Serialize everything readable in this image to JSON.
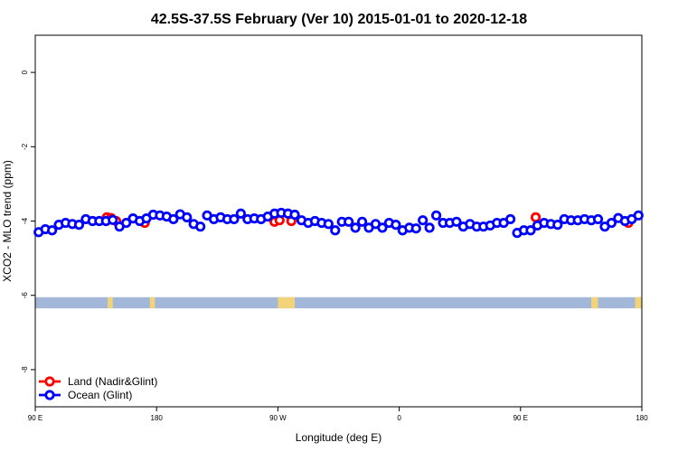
{
  "chart_data": {
    "type": "scatter",
    "title": "42.5S-37.5S February (Ver 10)   2015-01-01 to 2020-12-18",
    "xlabel": "Longitude (deg E)",
    "ylabel": "XCO2 - MLO trend (ppm)",
    "xlim": [
      90,
      450
    ],
    "ylim": [
      -9,
      1
    ],
    "x_ticks": [
      {
        "value": 90,
        "label": "90 E"
      },
      {
        "value": 162,
        "label": "180"
      },
      {
        "value": 234,
        "label": "90 W"
      },
      {
        "value": 306,
        "label": "0"
      },
      {
        "value": 378,
        "label": "90 E"
      },
      {
        "value": 450,
        "label": "180"
      }
    ],
    "y_ticks": [
      {
        "value": 0,
        "label": "0"
      },
      {
        "value": -2,
        "label": "-2"
      },
      {
        "value": -4,
        "label": "-4"
      },
      {
        "value": -6,
        "label": "-6"
      },
      {
        "value": -8,
        "label": "-8"
      }
    ],
    "legend": {
      "position": "bottom-left",
      "entries": [
        {
          "name": "Land (Nadir&Glint)",
          "color": "#ff0000"
        },
        {
          "name": "Ocean (Glint)",
          "color": "#0000ff"
        }
      ]
    },
    "series": [
      {
        "name": "Land (Nadir&Glint)",
        "color": "#ff0000",
        "x": [
          132.5,
          135,
          138,
          155,
          232,
          235,
          242,
          387,
          442
        ],
        "y": [
          -3.9,
          -3.92,
          -4.0,
          -4.05,
          -4.02,
          -3.98,
          -4.0,
          -3.9,
          -4.05
        ]
      },
      {
        "name": "Ocean (Glint)",
        "color": "#0000ff",
        "x": [
          92,
          96,
          100,
          104,
          108,
          112,
          116,
          120,
          124,
          128,
          132,
          136,
          140,
          144,
          148,
          152,
          156,
          160,
          164,
          168,
          172,
          176,
          180,
          184,
          188,
          192,
          196,
          200,
          204,
          208,
          212,
          216,
          220,
          224,
          228,
          232,
          236,
          240,
          244,
          248,
          252,
          256,
          260,
          264,
          268,
          272,
          276,
          280,
          284,
          288,
          292,
          296,
          300,
          304,
          308,
          312,
          316,
          320,
          324,
          328,
          332,
          336,
          340,
          344,
          348,
          352,
          356,
          360,
          364,
          368,
          372,
          376,
          380,
          384,
          388,
          392,
          396,
          400,
          404,
          408,
          412,
          416,
          420,
          424,
          428,
          432,
          436,
          440,
          444,
          448
        ],
        "y": [
          -4.3,
          -4.22,
          -4.25,
          -4.1,
          -4.05,
          -4.08,
          -4.1,
          -3.95,
          -4.0,
          -4.0,
          -4.0,
          -3.97,
          -4.15,
          -4.05,
          -3.93,
          -4.0,
          -3.93,
          -3.83,
          -3.85,
          -3.88,
          -3.95,
          -3.82,
          -3.9,
          -4.08,
          -4.15,
          -3.85,
          -3.95,
          -3.9,
          -3.95,
          -3.95,
          -3.8,
          -3.95,
          -3.93,
          -3.95,
          -3.88,
          -3.8,
          -3.78,
          -3.8,
          -3.83,
          -3.98,
          -4.05,
          -4.0,
          -4.05,
          -4.08,
          -4.25,
          -4.02,
          -4.02,
          -4.18,
          -4.02,
          -4.18,
          -4.08,
          -4.18,
          -4.05,
          -4.1,
          -4.25,
          -4.18,
          -4.2,
          -3.98,
          -4.18,
          -3.85,
          -4.05,
          -4.05,
          -4.02,
          -4.15,
          -4.08,
          -4.15,
          -4.15,
          -4.12,
          -4.05,
          -4.05,
          -3.95,
          -4.32,
          -4.25,
          -4.25,
          -4.12,
          -4.05,
          -4.08,
          -4.1,
          -3.95,
          -3.98,
          -3.98,
          -3.95,
          -3.98,
          -3.95,
          -4.15,
          -4.05,
          -3.92,
          -4.0,
          -3.95,
          -3.85
        ]
      }
    ],
    "surface_band": {
      "y_range": [
        -6.35,
        -6.05
      ],
      "ocean_color": "#a3b8d8",
      "land_color": "#f2d37a",
      "land_segments": [
        [
          133,
          136
        ],
        [
          158,
          161
        ],
        [
          234,
          244
        ],
        [
          420,
          424
        ],
        [
          446,
          450
        ]
      ]
    }
  }
}
